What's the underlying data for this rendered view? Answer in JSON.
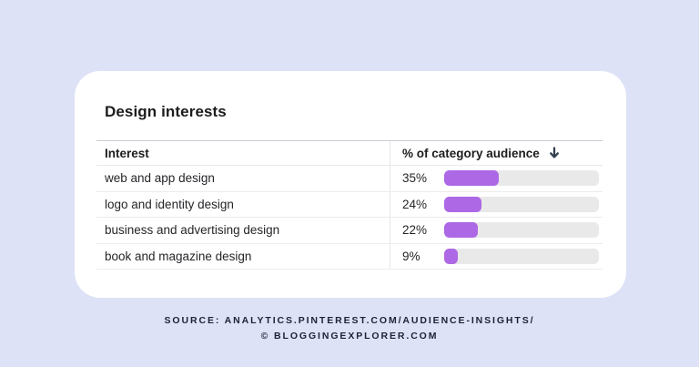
{
  "page": {
    "background_color": "#dee2f6"
  },
  "card": {
    "title": "Design interests"
  },
  "table": {
    "columns": [
      {
        "label": "Interest"
      },
      {
        "label": "% of category audience",
        "sort_direction": "descending",
        "sort_icon": "arrow-down-icon"
      }
    ]
  },
  "chart_data": {
    "type": "bar",
    "orientation": "horizontal",
    "title": "Design interests",
    "xlabel": "% of category audience",
    "xlim": [
      0,
      100
    ],
    "categories": [
      "web and app design",
      "logo and identity design",
      "business and advertising design",
      "book and magazine design"
    ],
    "values": [
      35,
      24,
      22,
      9
    ],
    "value_labels": [
      "35%",
      "24%",
      "22%",
      "9%"
    ],
    "bar_color": "#ad68e6",
    "track_color": "#e9e9e9",
    "sort_order": "descending"
  },
  "source": {
    "line1": "SOURCE: ANALYTICS.PINTEREST.COM/AUDIENCE-INSIGHTS/",
    "line2": "© BLOGGINGEXPLORER.COM"
  },
  "colors": {
    "page_background": "#dee2f6",
    "card_background": "#ffffff",
    "bar_fill": "#ad68e6",
    "bar_track": "#e9e9e9",
    "text_primary": "#1c1c1e",
    "sort_arrow": "#33404f"
  }
}
